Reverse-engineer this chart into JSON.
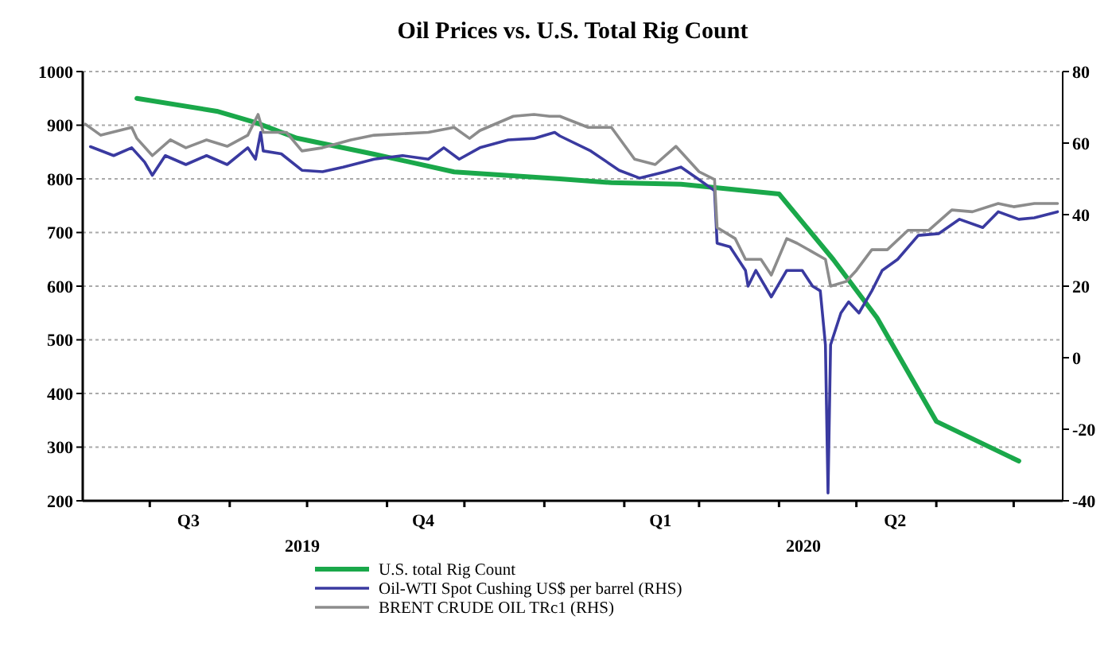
{
  "chart_data": {
    "type": "line",
    "title": "Oil Prices vs. U.S. Total Rig Count",
    "legend": "bottom",
    "grid": "y",
    "line_style": "solid",
    "marker": "none",
    "xlim": [
      "2019-07-06",
      "2020-07-20"
    ],
    "xticks": [
      {
        "value": "2019-08-01",
        "label": null
      },
      {
        "value": "2019-09-01",
        "label": null
      },
      {
        "value": "2019-10-01",
        "label": null
      },
      {
        "value": "2019-11-01",
        "label": null
      },
      {
        "value": "2019-12-01",
        "label": null
      },
      {
        "value": "2020-01-01",
        "label": null
      },
      {
        "value": "2020-02-01",
        "label": null
      },
      {
        "value": "2020-03-01",
        "label": null
      },
      {
        "value": "2020-04-01",
        "label": null
      },
      {
        "value": "2020-05-01",
        "label": null
      },
      {
        "value": "2020-06-01",
        "label": null
      },
      {
        "value": "2020-07-01",
        "label": null
      },
      {
        "value": "2019-08-16",
        "label": "Q3"
      },
      {
        "value": "2019-11-15",
        "label": "Q4"
      },
      {
        "value": "2020-02-15",
        "label": "Q1"
      },
      {
        "value": "2020-05-16",
        "label": "Q2"
      }
    ],
    "annotations": [
      "2019",
      "2020"
    ],
    "ylim": [
      200,
      1000
    ],
    "yticks": [
      200,
      300,
      400,
      500,
      600,
      700,
      800,
      900,
      1000
    ],
    "y2lim": [
      -40,
      80
    ],
    "y2ticks": [
      -40,
      -20,
      0,
      20,
      40,
      60,
      80
    ],
    "series": [
      {
        "name": "U.S. total Rig Count",
        "color": "#1aa84a",
        "x": [
          "2019-07-27",
          "2019-08-27",
          "2019-09-11",
          "2019-09-27",
          "2019-10-27",
          "2019-11-27",
          "2020-01-07",
          "2020-01-27",
          "2020-02-23",
          "2020-04-01",
          "2020-04-22",
          "2020-05-09",
          "2020-06-01",
          "2020-07-03"
        ],
        "values": [
          950,
          926,
          905,
          876,
          846,
          813,
          800,
          793,
          790,
          772,
          650,
          541,
          348,
          274
        ]
      },
      {
        "name": "Oil-WTI Spot Cushing US$ per barrel (RHS)",
        "color": "#3a3aa0",
        "axis": "y2",
        "x": [
          "2019-07-09",
          "2019-07-18",
          "2019-07-25",
          "2019-07-30",
          "2019-08-02",
          "2019-08-07",
          "2019-08-15",
          "2019-08-23",
          "2019-08-31",
          "2019-09-08",
          "2019-09-11",
          "2019-09-13",
          "2019-09-14",
          "2019-09-21",
          "2019-09-29",
          "2019-10-07",
          "2019-10-15",
          "2019-10-27",
          "2019-11-07",
          "2019-11-17",
          "2019-11-23",
          "2019-11-29",
          "2019-12-07",
          "2019-12-18",
          "2019-12-28",
          "2020-01-05",
          "2020-01-07",
          "2020-01-19",
          "2020-01-30",
          "2020-02-07",
          "2020-02-17",
          "2020-02-23",
          "2020-03-01",
          "2020-03-07",
          "2020-03-08",
          "2020-03-13",
          "2020-03-19",
          "2020-03-20",
          "2020-03-23",
          "2020-03-29",
          "2020-04-04",
          "2020-04-10",
          "2020-04-14",
          "2020-04-17",
          "2020-04-19",
          "2020-04-20",
          "2020-04-21",
          "2020-04-25",
          "2020-04-28",
          "2020-05-02",
          "2020-05-07",
          "2020-05-11",
          "2020-05-17",
          "2020-05-25",
          "2020-06-02",
          "2020-06-10",
          "2020-06-19",
          "2020-06-25",
          "2020-07-03",
          "2020-07-09",
          "2020-07-18"
        ],
        "values": [
          59,
          56.5,
          58.7,
          54.7,
          51,
          56.5,
          54,
          56.5,
          54,
          58.7,
          55.5,
          63,
          57.8,
          57,
          52.4,
          52,
          53.3,
          55.5,
          56.5,
          55.5,
          58.7,
          55.5,
          58.7,
          60.9,
          61.3,
          63,
          62,
          57.8,
          52.4,
          50.2,
          52,
          53.3,
          49.8,
          46.7,
          32,
          31,
          24.4,
          20,
          24.4,
          17,
          24.4,
          24.4,
          20,
          18.7,
          3.6,
          -37.8,
          3.6,
          12.5,
          15.6,
          12.5,
          18.7,
          24.4,
          27.5,
          34.2,
          34.7,
          38.7,
          36.4,
          40.8,
          38.7,
          39.1,
          40.8
        ]
      },
      {
        "name": "BRENT CRUDE OIL TRc1 (RHS)",
        "color": "#8c8c8c",
        "axis": "y2",
        "x": [
          "2019-07-07",
          "2019-07-13",
          "2019-07-25",
          "2019-07-27",
          "2019-08-02",
          "2019-08-09",
          "2019-08-15",
          "2019-08-23",
          "2019-08-31",
          "2019-09-08",
          "2019-09-12",
          "2019-09-14",
          "2019-09-23",
          "2019-09-29",
          "2019-10-07",
          "2019-10-18",
          "2019-10-27",
          "2019-11-17",
          "2019-11-27",
          "2019-12-03",
          "2019-12-07",
          "2019-12-20",
          "2019-12-28",
          "2020-01-03",
          "2020-01-07",
          "2020-01-18",
          "2020-01-27",
          "2020-02-05",
          "2020-02-13",
          "2020-02-21",
          "2020-03-01",
          "2020-03-07",
          "2020-03-08",
          "2020-03-15",
          "2020-03-19",
          "2020-03-25",
          "2020-03-29",
          "2020-04-04",
          "2020-04-08",
          "2020-04-19",
          "2020-04-21",
          "2020-04-27",
          "2020-05-01",
          "2020-05-07",
          "2020-05-13",
          "2020-05-21",
          "2020-05-29",
          "2020-06-07",
          "2020-06-15",
          "2020-06-25",
          "2020-07-01",
          "2020-07-09",
          "2020-07-18"
        ],
        "values": [
          65.3,
          62.2,
          64.4,
          61.3,
          56.5,
          60.9,
          58.7,
          60.9,
          59.1,
          62.2,
          68,
          63,
          63,
          57.8,
          58.7,
          60.9,
          62.2,
          63,
          64.4,
          61.3,
          63.5,
          67.5,
          68,
          67.5,
          67.5,
          64.4,
          64.4,
          55.5,
          54,
          59.1,
          52,
          49.8,
          36.4,
          33.3,
          27.5,
          27.5,
          23.1,
          33.3,
          32,
          27.5,
          20,
          21.3,
          24.4,
          30.2,
          30.2,
          35.6,
          35.6,
          41.3,
          40.8,
          43.1,
          42.2,
          43.1,
          43.1
        ]
      }
    ]
  }
}
